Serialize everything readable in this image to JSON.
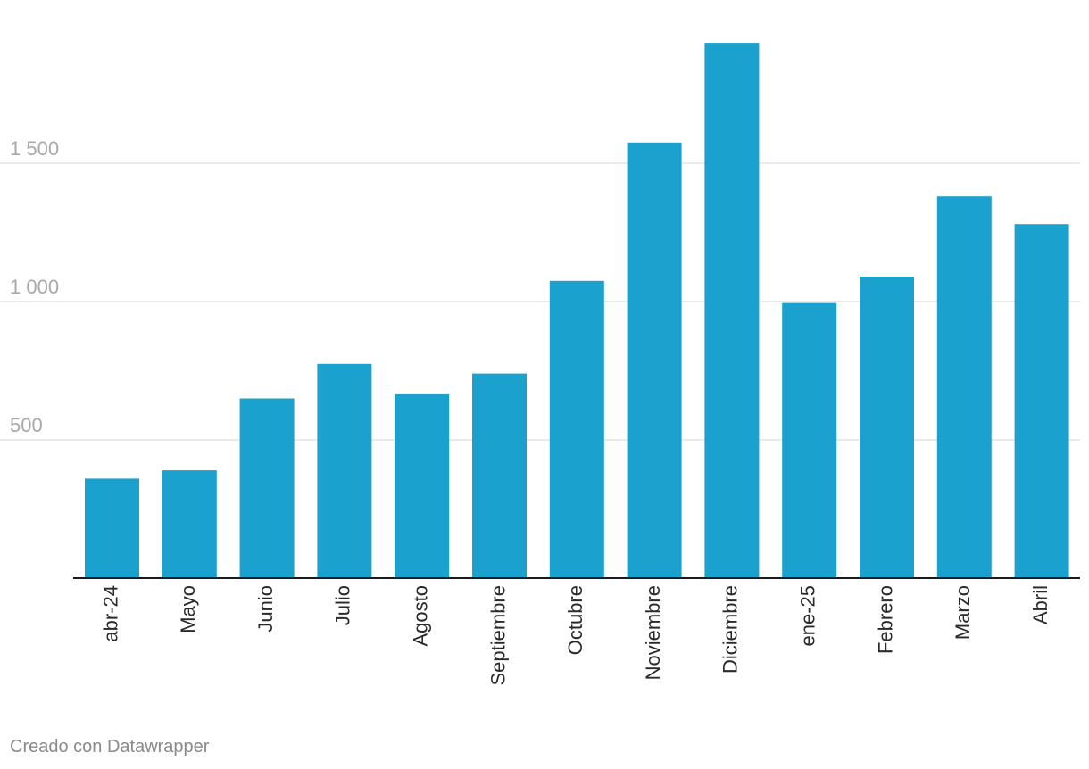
{
  "chart_data": {
    "type": "bar",
    "categories": [
      "abr-24",
      "Mayo",
      "Junio",
      "Julio",
      "Agosto",
      "Septiembre",
      "Octubre",
      "Noviembre",
      "Diciembre",
      "ene-25",
      "Febrero",
      "Marzo",
      "Abril"
    ],
    "values": [
      360,
      390,
      650,
      775,
      665,
      740,
      1075,
      1575,
      1935,
      995,
      1090,
      1380,
      1280
    ],
    "ylim": [
      0,
      1950
    ],
    "yticks": [
      500,
      1000,
      1500
    ],
    "ytick_labels": [
      "500",
      "1 000",
      "1 500"
    ],
    "grid": true,
    "bar_color": "#1ba1cd",
    "title": "",
    "xlabel": "",
    "ylabel": ""
  },
  "footer": {
    "credit": "Creado con Datawrapper"
  }
}
